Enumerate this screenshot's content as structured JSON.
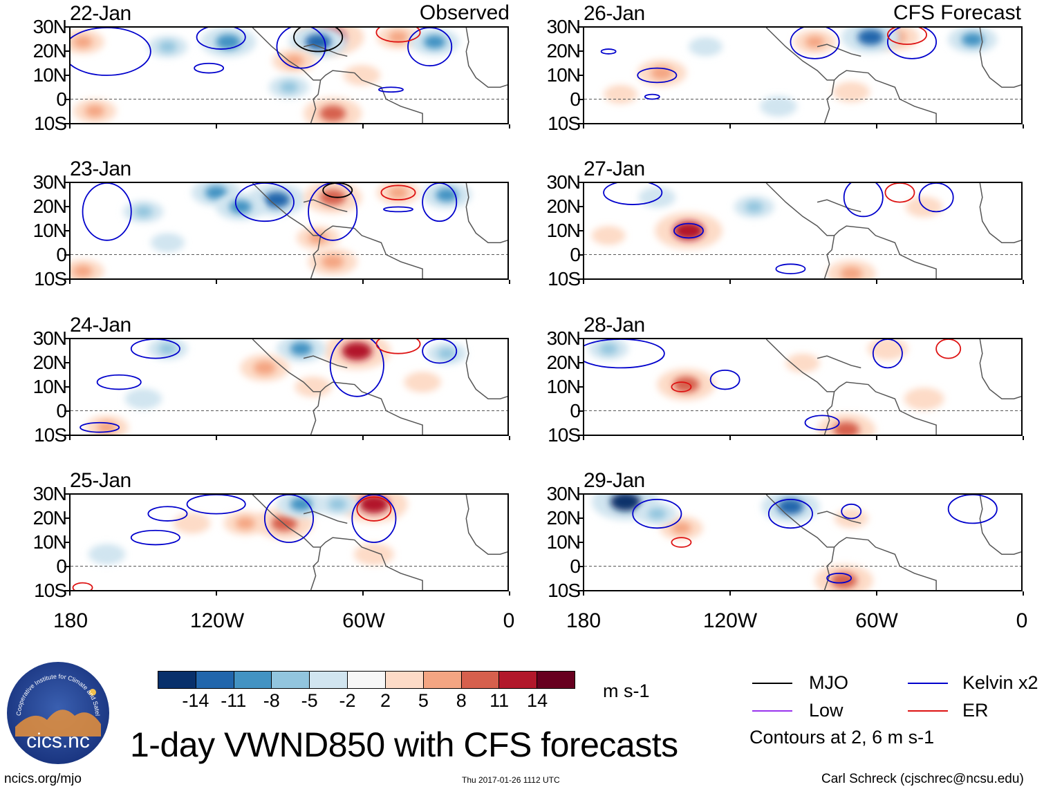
{
  "chart_data": {
    "type": "heatmap",
    "title": "1-day VWND850 with CFS forecasts",
    "variable": "VWND850",
    "units": "m s-1",
    "headers": {
      "observed": "Observed",
      "forecast": "CFS Forecast"
    },
    "lat_ticks": [
      "30N",
      "20N",
      "10N",
      "0",
      "10S"
    ],
    "lon_ticks": [
      "180",
      "120W",
      "60W",
      "0"
    ],
    "ylim": [
      -10,
      30
    ],
    "xlim": [
      -180,
      0
    ],
    "color_levels": [
      "-14",
      "-11",
      "-8",
      "-5",
      "-2",
      "2",
      "5",
      "8",
      "11",
      "14"
    ],
    "color_scale": [
      "#08306b",
      "#2166ac",
      "#4393c3",
      "#92c5de",
      "#d1e5f0",
      "#f7f7f7",
      "#fddbc7",
      "#f4a582",
      "#d6604d",
      "#b2182b",
      "#67001f"
    ],
    "panels": [
      {
        "date": "22-Jan",
        "kind": "observed",
        "blobs": [
          {
            "lon": -115,
            "lat": 24,
            "v": -10
          },
          {
            "lon": -73,
            "lat": 26,
            "v": 14
          },
          {
            "lon": -78,
            "lat": 24,
            "v": -11
          },
          {
            "lon": -45,
            "lat": 26,
            "v": 6
          },
          {
            "lon": -175,
            "lat": 24,
            "v": 6
          },
          {
            "lon": -88,
            "lat": 16,
            "v": 6
          },
          {
            "lon": -72,
            "lat": -6,
            "v": 11
          },
          {
            "lon": -170,
            "lat": -5,
            "v": 6
          },
          {
            "lon": -90,
            "lat": 5,
            "v": -5
          },
          {
            "lon": -30,
            "lat": 24,
            "v": -8
          },
          {
            "lon": -140,
            "lat": 22,
            "v": -5
          },
          {
            "lon": -60,
            "lat": 10,
            "v": 4
          }
        ],
        "contours": [
          {
            "color": "blue",
            "lon": -165,
            "lat": 20,
            "rx": 18,
            "ry": 10
          },
          {
            "color": "blue",
            "lon": -118,
            "lat": 26,
            "rx": 10,
            "ry": 5
          },
          {
            "color": "blue",
            "lon": -123,
            "lat": 13,
            "rx": 6,
            "ry": 2
          },
          {
            "color": "blue",
            "lon": -85,
            "lat": 22,
            "rx": 10,
            "ry": 9
          },
          {
            "color": "blue",
            "lon": -48,
            "lat": 4,
            "rx": 5,
            "ry": 1
          },
          {
            "color": "blue",
            "lon": -32,
            "lat": 22,
            "rx": 9,
            "ry": 8
          },
          {
            "color": "black",
            "lon": -78,
            "lat": 26,
            "rx": 10,
            "ry": 6
          },
          {
            "color": "red",
            "lon": -45,
            "lat": 28,
            "rx": 9,
            "ry": 4
          }
        ]
      },
      {
        "date": "23-Jan",
        "kind": "observed",
        "blobs": [
          {
            "lon": -120,
            "lat": 26,
            "v": -8
          },
          {
            "lon": -95,
            "lat": 23,
            "v": -11
          },
          {
            "lon": -72,
            "lat": 24,
            "v": 11
          },
          {
            "lon": -110,
            "lat": 20,
            "v": -8
          },
          {
            "lon": -45,
            "lat": 26,
            "v": 6
          },
          {
            "lon": -25,
            "lat": 25,
            "v": -8
          },
          {
            "lon": -175,
            "lat": -7,
            "v": 6
          },
          {
            "lon": -72,
            "lat": -3,
            "v": 8
          },
          {
            "lon": -78,
            "lat": 7,
            "v": 6
          },
          {
            "lon": -150,
            "lat": 18,
            "v": -5
          },
          {
            "lon": -140,
            "lat": 5,
            "v": -3
          }
        ],
        "contours": [
          {
            "color": "blue",
            "lon": -165,
            "lat": 18,
            "rx": 10,
            "ry": 12
          },
          {
            "color": "blue",
            "lon": -100,
            "lat": 22,
            "rx": 12,
            "ry": 8
          },
          {
            "color": "blue",
            "lon": -72,
            "lat": 18,
            "rx": 10,
            "ry": 12
          },
          {
            "color": "blue",
            "lon": -28,
            "lat": 22,
            "rx": 7,
            "ry": 8
          },
          {
            "color": "blue",
            "lon": -45,
            "lat": 19,
            "rx": 6,
            "ry": 1
          },
          {
            "color": "black",
            "lon": -70,
            "lat": 27,
            "rx": 6,
            "ry": 3
          },
          {
            "color": "red",
            "lon": -45,
            "lat": 26,
            "rx": 7,
            "ry": 3
          }
        ]
      },
      {
        "date": "24-Jan",
        "kind": "observed",
        "blobs": [
          {
            "lon": -62,
            "lat": 25,
            "v": 14
          },
          {
            "lon": -85,
            "lat": 26,
            "v": -8
          },
          {
            "lon": -100,
            "lat": 18,
            "v": 8
          },
          {
            "lon": -140,
            "lat": 26,
            "v": -5
          },
          {
            "lon": -165,
            "lat": -7,
            "v": 6
          },
          {
            "lon": -80,
            "lat": 10,
            "v": 4
          },
          {
            "lon": -35,
            "lat": 12,
            "v": 4
          },
          {
            "lon": -25,
            "lat": 24,
            "v": -5
          },
          {
            "lon": -150,
            "lat": 5,
            "v": -4
          }
        ],
        "contours": [
          {
            "color": "blue",
            "lon": -160,
            "lat": 12,
            "rx": 9,
            "ry": 3
          },
          {
            "color": "blue",
            "lon": -62,
            "lat": 19,
            "rx": 11,
            "ry": 13
          },
          {
            "color": "blue",
            "lon": -145,
            "lat": 26,
            "rx": 10,
            "ry": 4
          },
          {
            "color": "blue",
            "lon": -28,
            "lat": 25,
            "rx": 7,
            "ry": 5
          },
          {
            "color": "blue",
            "lon": -168,
            "lat": -7,
            "rx": 8,
            "ry": 2
          },
          {
            "color": "red",
            "lon": -45,
            "lat": 28,
            "rx": 9,
            "ry": 4
          }
        ]
      },
      {
        "date": "25-Jan",
        "kind": "observed",
        "blobs": [
          {
            "lon": -55,
            "lat": 26,
            "v": 14
          },
          {
            "lon": -92,
            "lat": 18,
            "v": 11
          },
          {
            "lon": -108,
            "lat": 18,
            "v": 6
          },
          {
            "lon": -85,
            "lat": 26,
            "v": -8
          },
          {
            "lon": -70,
            "lat": 26,
            "v": -5
          },
          {
            "lon": -165,
            "lat": 5,
            "v": -4
          },
          {
            "lon": -55,
            "lat": 5,
            "v": 5
          },
          {
            "lon": -130,
            "lat": 18,
            "v": 4
          }
        ],
        "contours": [
          {
            "color": "blue",
            "lon": -145,
            "lat": 12,
            "rx": 10,
            "ry": 3
          },
          {
            "color": "blue",
            "lon": -140,
            "lat": 22,
            "rx": 8,
            "ry": 3
          },
          {
            "color": "blue",
            "lon": -90,
            "lat": 20,
            "rx": 10,
            "ry": 10
          },
          {
            "color": "blue",
            "lon": -55,
            "lat": 20,
            "rx": 9,
            "ry": 10
          },
          {
            "color": "blue",
            "lon": -120,
            "lat": 26,
            "rx": 12,
            "ry": 4
          },
          {
            "color": "red",
            "lon": -55,
            "lat": 24,
            "rx": 7,
            "ry": 5
          },
          {
            "color": "red",
            "lon": -175,
            "lat": -9,
            "rx": 4,
            "ry": 2
          }
        ]
      },
      {
        "date": "26-Jan",
        "kind": "forecast",
        "blobs": [
          {
            "lon": -52,
            "lat": 26,
            "v": 8
          },
          {
            "lon": -62,
            "lat": 26,
            "v": -11
          },
          {
            "lon": -85,
            "lat": 24,
            "v": 6
          },
          {
            "lon": -148,
            "lat": 11,
            "v": 8
          },
          {
            "lon": -20,
            "lat": 25,
            "v": -8
          },
          {
            "lon": -70,
            "lat": 3,
            "v": 4
          },
          {
            "lon": -165,
            "lat": 2,
            "v": 3
          },
          {
            "lon": -130,
            "lat": 22,
            "v": -3
          },
          {
            "lon": -100,
            "lat": -3,
            "v": -4
          }
        ],
        "contours": [
          {
            "color": "blue",
            "lon": -150,
            "lat": 10,
            "rx": 8,
            "ry": 3
          },
          {
            "color": "blue",
            "lon": -85,
            "lat": 24,
            "rx": 10,
            "ry": 7
          },
          {
            "color": "blue",
            "lon": -45,
            "lat": 24,
            "rx": 10,
            "ry": 7
          },
          {
            "color": "blue",
            "lon": -170,
            "lat": 20,
            "rx": 3,
            "ry": 1
          },
          {
            "color": "red",
            "lon": -47,
            "lat": 27,
            "rx": 8,
            "ry": 4
          },
          {
            "color": "blue",
            "lon": -152,
            "lat": 1,
            "rx": 3,
            "ry": 1
          }
        ]
      },
      {
        "date": "27-Jan",
        "kind": "forecast",
        "blobs": [
          {
            "lon": -137,
            "lat": 10,
            "v": 14
          },
          {
            "lon": -110,
            "lat": 20,
            "v": -5
          },
          {
            "lon": -70,
            "lat": -8,
            "v": 8
          },
          {
            "lon": -150,
            "lat": 24,
            "v": -4
          },
          {
            "lon": -40,
            "lat": 20,
            "v": 4
          },
          {
            "lon": -170,
            "lat": 8,
            "v": 3
          }
        ],
        "contours": [
          {
            "color": "blue",
            "lon": -137,
            "lat": 10,
            "rx": 6,
            "ry": 3
          },
          {
            "color": "blue",
            "lon": -160,
            "lat": 26,
            "rx": 12,
            "ry": 5
          },
          {
            "color": "blue",
            "lon": -65,
            "lat": 24,
            "rx": 8,
            "ry": 8
          },
          {
            "color": "blue",
            "lon": -35,
            "lat": 24,
            "rx": 7,
            "ry": 6
          },
          {
            "color": "blue",
            "lon": -95,
            "lat": -6,
            "rx": 6,
            "ry": 2
          },
          {
            "color": "red",
            "lon": -50,
            "lat": 26,
            "rx": 6,
            "ry": 4
          }
        ]
      },
      {
        "date": "28-Jan",
        "kind": "forecast",
        "blobs": [
          {
            "lon": -138,
            "lat": 11,
            "v": 11
          },
          {
            "lon": -170,
            "lat": 26,
            "v": -5
          },
          {
            "lon": -72,
            "lat": -8,
            "v": 11
          },
          {
            "lon": -55,
            "lat": 26,
            "v": 5
          },
          {
            "lon": -90,
            "lat": 20,
            "v": 3
          },
          {
            "lon": -40,
            "lat": 5,
            "v": 5
          }
        ],
        "contours": [
          {
            "color": "blue",
            "lon": -165,
            "lat": 24,
            "rx": 18,
            "ry": 6
          },
          {
            "color": "blue",
            "lon": -122,
            "lat": 13,
            "rx": 6,
            "ry": 4
          },
          {
            "color": "blue",
            "lon": -82,
            "lat": -5,
            "rx": 7,
            "ry": 3
          },
          {
            "color": "blue",
            "lon": -55,
            "lat": 24,
            "rx": 6,
            "ry": 6
          },
          {
            "color": "red",
            "lon": -140,
            "lat": 10,
            "rx": 4,
            "ry": 2
          },
          {
            "color": "red",
            "lon": -30,
            "lat": 26,
            "rx": 5,
            "ry": 4
          }
        ]
      },
      {
        "date": "29-Jan",
        "kind": "forecast",
        "blobs": [
          {
            "lon": -163,
            "lat": 27,
            "v": -14
          },
          {
            "lon": -95,
            "lat": 25,
            "v": -11
          },
          {
            "lon": -140,
            "lat": 16,
            "v": 6
          },
          {
            "lon": -73,
            "lat": -6,
            "v": 11
          },
          {
            "lon": -150,
            "lat": 22,
            "v": -5
          },
          {
            "lon": -70,
            "lat": 20,
            "v": 3
          }
        ],
        "contours": [
          {
            "color": "blue",
            "lon": -150,
            "lat": 22,
            "rx": 10,
            "ry": 6
          },
          {
            "color": "blue",
            "lon": -95,
            "lat": 22,
            "rx": 9,
            "ry": 6
          },
          {
            "color": "blue",
            "lon": -70,
            "lat": 23,
            "rx": 4,
            "ry": 3
          },
          {
            "color": "blue",
            "lon": -20,
            "lat": 24,
            "rx": 10,
            "ry": 6
          },
          {
            "color": "red",
            "lon": -140,
            "lat": 10,
            "rx": 4,
            "ry": 2
          },
          {
            "color": "blue",
            "lon": -75,
            "lat": -5,
            "rx": 5,
            "ry": 2
          }
        ]
      }
    ]
  },
  "colorbar": {
    "units_label": "m s-1"
  },
  "legend": {
    "items": [
      {
        "label": "MJO",
        "color": "#000000"
      },
      {
        "label": "Kelvin x2",
        "color": "#0000cc"
      },
      {
        "label": "Low",
        "color": "#9933ee"
      },
      {
        "label": "ER",
        "color": "#dd1111"
      }
    ],
    "note": "Contours at 2, 6 m s-1"
  },
  "logo": {
    "text": "cics.nc",
    "ring_text": "Cooperative Institute for Climate and Satellites"
  },
  "footer": {
    "site": "ncics.org/mjo",
    "timestamp": "Thu 2017-01-26 1112 UTC",
    "credit": "Carl Schreck (cjschrec@ncsu.edu)"
  }
}
